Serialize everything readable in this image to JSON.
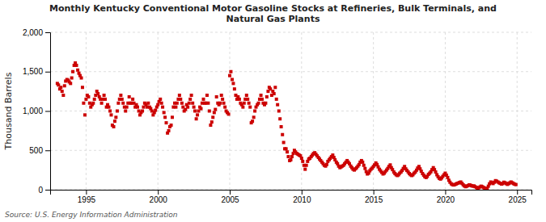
{
  "chart_data": {
    "type": "scatter",
    "title": "Monthly Kentucky Conventional Motor Gasoline Stocks at Refineries, Bulk Terminals, and\nNatural Gas Plants",
    "y_label": "Thousand Barrels",
    "source": "Source: U.S. Energy Information Administration",
    "color": "#cc0000",
    "marker": "square",
    "grid": true,
    "xlim": [
      1992.5,
      2026.0
    ],
    "xticks": [
      1995,
      2000,
      2005,
      2010,
      2015,
      2020,
      2025
    ],
    "ylim": [
      0,
      2000
    ],
    "yticks": [
      0,
      500,
      {
        "value": 1000,
        "label": "1,000"
      },
      {
        "value": 1500,
        "label": "1,500"
      },
      {
        "value": 2000,
        "label": "2,000"
      }
    ],
    "x": [
      1993.0,
      1993.08,
      1993.17,
      1993.25,
      1993.33,
      1993.42,
      1993.5,
      1993.58,
      1993.67,
      1993.75,
      1993.83,
      1993.92,
      1994.0,
      1994.08,
      1994.17,
      1994.25,
      1994.33,
      1994.42,
      1994.5,
      1994.58,
      1994.67,
      1994.75,
      1994.83,
      1994.92,
      1995.0,
      1995.08,
      1995.17,
      1995.25,
      1995.33,
      1995.42,
      1995.5,
      1995.58,
      1995.67,
      1995.75,
      1995.83,
      1995.92,
      1996.0,
      1996.08,
      1996.17,
      1996.25,
      1996.33,
      1996.42,
      1996.5,
      1996.58,
      1996.67,
      1996.75,
      1996.83,
      1996.92,
      1997.0,
      1997.08,
      1997.17,
      1997.25,
      1997.33,
      1997.42,
      1997.5,
      1997.58,
      1997.67,
      1997.75,
      1997.83,
      1997.92,
      1998.0,
      1998.08,
      1998.17,
      1998.25,
      1998.33,
      1998.42,
      1998.5,
      1998.58,
      1998.67,
      1998.75,
      1998.83,
      1998.92,
      1999.0,
      1999.08,
      1999.17,
      1999.25,
      1999.33,
      1999.42,
      1999.5,
      1999.58,
      1999.67,
      1999.75,
      1999.83,
      1999.92,
      2000.0,
      2000.08,
      2000.17,
      2000.25,
      2000.33,
      2000.42,
      2000.5,
      2000.58,
      2000.67,
      2000.75,
      2000.83,
      2000.92,
      2001.0,
      2001.08,
      2001.17,
      2001.25,
      2001.33,
      2001.42,
      2001.5,
      2001.58,
      2001.67,
      2001.75,
      2001.83,
      2001.92,
      2002.0,
      2002.08,
      2002.17,
      2002.25,
      2002.33,
      2002.42,
      2002.5,
      2002.58,
      2002.67,
      2002.75,
      2002.83,
      2002.92,
      2003.0,
      2003.08,
      2003.17,
      2003.25,
      2003.33,
      2003.42,
      2003.5,
      2003.58,
      2003.67,
      2003.75,
      2003.83,
      2003.92,
      2004.0,
      2004.08,
      2004.17,
      2004.25,
      2004.33,
      2004.42,
      2004.5,
      2004.58,
      2004.67,
      2004.75,
      2004.83,
      2004.92,
      2005.0,
      2005.08,
      2005.17,
      2005.25,
      2005.33,
      2005.42,
      2005.5,
      2005.58,
      2005.67,
      2005.75,
      2005.83,
      2005.92,
      2006.0,
      2006.08,
      2006.17,
      2006.25,
      2006.33,
      2006.42,
      2006.5,
      2006.58,
      2006.67,
      2006.75,
      2006.83,
      2006.92,
      2007.0,
      2007.08,
      2007.17,
      2007.25,
      2007.33,
      2007.42,
      2007.5,
      2007.58,
      2007.67,
      2007.75,
      2007.83,
      2007.92,
      2008.0,
      2008.08,
      2008.17,
      2008.25,
      2008.33,
      2008.42,
      2008.5,
      2008.58,
      2008.67,
      2008.75,
      2008.83,
      2008.92,
      2009.0,
      2009.08,
      2009.17,
      2009.25,
      2009.33,
      2009.42,
      2009.5,
      2009.58,
      2009.67,
      2009.75,
      2009.83,
      2009.92,
      2010.0,
      2010.08,
      2010.17,
      2010.25,
      2010.33,
      2010.42,
      2010.5,
      2010.58,
      2010.67,
      2010.75,
      2010.83,
      2010.92,
      2011.0,
      2011.08,
      2011.17,
      2011.25,
      2011.33,
      2011.42,
      2011.5,
      2011.58,
      2011.67,
      2011.75,
      2011.83,
      2011.92,
      2012.0,
      2012.08,
      2012.17,
      2012.25,
      2012.33,
      2012.42,
      2012.5,
      2012.58,
      2012.67,
      2012.75,
      2012.83,
      2012.92,
      2013.0,
      2013.08,
      2013.17,
      2013.25,
      2013.33,
      2013.42,
      2013.5,
      2013.58,
      2013.67,
      2013.75,
      2013.83,
      2013.92,
      2014.0,
      2014.08,
      2014.17,
      2014.25,
      2014.33,
      2014.42,
      2014.5,
      2014.58,
      2014.67,
      2014.75,
      2014.83,
      2014.92,
      2015.0,
      2015.08,
      2015.17,
      2015.25,
      2015.33,
      2015.42,
      2015.5,
      2015.58,
      2015.67,
      2015.75,
      2015.83,
      2015.92,
      2016.0,
      2016.08,
      2016.17,
      2016.25,
      2016.33,
      2016.42,
      2016.5,
      2016.58,
      2016.67,
      2016.75,
      2016.83,
      2016.92,
      2017.0,
      2017.08,
      2017.17,
      2017.25,
      2017.33,
      2017.42,
      2017.5,
      2017.58,
      2017.67,
      2017.75,
      2017.83,
      2017.92,
      2018.0,
      2018.08,
      2018.17,
      2018.25,
      2018.33,
      2018.42,
      2018.5,
      2018.58,
      2018.67,
      2018.75,
      2018.83,
      2018.92,
      2019.0,
      2019.08,
      2019.17,
      2019.25,
      2019.33,
      2019.42,
      2019.5,
      2019.58,
      2019.67,
      2019.75,
      2019.83,
      2019.92,
      2020.0,
      2020.08,
      2020.17,
      2020.25,
      2020.33,
      2020.42,
      2020.5,
      2020.58,
      2020.67,
      2020.75,
      2020.83,
      2020.92,
      2021.0,
      2021.08,
      2021.17,
      2021.25,
      2021.33,
      2021.42,
      2021.5,
      2021.58,
      2021.67,
      2021.75,
      2021.83,
      2021.92,
      2022.0,
      2022.08,
      2022.17,
      2022.25,
      2022.33,
      2022.42,
      2022.5,
      2022.58,
      2022.67,
      2022.75,
      2022.83,
      2022.92,
      2023.0,
      2023.08,
      2023.17,
      2023.25,
      2023.33,
      2023.42,
      2023.5,
      2023.58,
      2023.67,
      2023.75,
      2023.83,
      2023.92,
      2024.0,
      2024.08,
      2024.17,
      2024.25,
      2024.33,
      2024.42,
      2024.5,
      2024.58,
      2024.67,
      2024.75,
      2024.83,
      2024.92
    ],
    "values": [
      1350,
      1330,
      1280,
      1300,
      1250,
      1200,
      1320,
      1380,
      1400,
      1390,
      1370,
      1350,
      1420,
      1500,
      1580,
      1610,
      1580,
      1520,
      1480,
      1450,
      1420,
      1300,
      1100,
      950,
      1150,
      1200,
      1180,
      1100,
      1050,
      1080,
      1100,
      1150,
      1200,
      1250,
      1220,
      1180,
      1150,
      1100,
      1150,
      1200,
      1150,
      1050,
      1080,
      1050,
      1000,
      950,
      820,
      800,
      870,
      920,
      1000,
      1100,
      1150,
      1200,
      1150,
      1100,
      1050,
      1000,
      1050,
      1100,
      1180,
      1100,
      1100,
      1150,
      1100,
      1050,
      1080,
      1050,
      1000,
      950,
      980,
      1000,
      1050,
      1100,
      1080,
      1050,
      1100,
      1050,
      1030,
      1000,
      950,
      980,
      1010,
      1050,
      1080,
      1120,
      1150,
      1100,
      1050,
      980,
      920,
      850,
      720,
      750,
      800,
      820,
      920,
      1050,
      1100,
      1050,
      1100,
      1150,
      1200,
      1150,
      1100,
      1050,
      1000,
      1020,
      1080,
      1050,
      1100,
      1150,
      1200,
      1100,
      1050,
      1000,
      900,
      950,
      1000,
      1050,
      1030,
      1100,
      1150,
      1100,
      1100,
      1200,
      1100,
      1000,
      820,
      860,
      920,
      980,
      1020,
      1180,
      1100,
      1080,
      1100,
      1200,
      1150,
      1100,
      1050,
      1000,
      980,
      960,
      1450,
      1500,
      1400,
      1350,
      1280,
      1200,
      1150,
      1180,
      1150,
      1100,
      1080,
      1050,
      1100,
      1150,
      1200,
      1150,
      1100,
      1050,
      850,
      870,
      920,
      1000,
      1050,
      1080,
      1100,
      1150,
      1200,
      1150,
      1100,
      1080,
      1100,
      1180,
      1250,
      1300,
      1280,
      1200,
      1250,
      1220,
      1300,
      1150,
      1080,
      1000,
      900,
      800,
      700,
      600,
      520,
      520,
      480,
      420,
      370,
      380,
      420,
      460,
      500,
      480,
      460,
      450,
      440,
      430,
      400,
      360,
      310,
      260,
      310,
      360,
      390,
      400,
      420,
      440,
      460,
      470,
      450,
      430,
      410,
      390,
      370,
      350,
      330,
      310,
      300,
      320,
      360,
      380,
      400,
      420,
      440,
      410,
      380,
      350,
      330,
      300,
      280,
      290,
      300,
      310,
      330,
      350,
      370,
      350,
      330,
      300,
      280,
      260,
      250,
      265,
      280,
      300,
      320,
      350,
      370,
      350,
      310,
      270,
      230,
      200,
      210,
      240,
      260,
      275,
      295,
      315,
      340,
      320,
      290,
      260,
      240,
      220,
      200,
      210,
      230,
      250,
      270,
      295,
      315,
      280,
      255,
      225,
      205,
      190,
      180,
      190,
      210,
      225,
      245,
      270,
      295,
      265,
      245,
      225,
      205,
      190,
      180,
      190,
      210,
      225,
      248,
      275,
      295,
      265,
      235,
      205,
      185,
      165,
      155,
      170,
      195,
      210,
      228,
      255,
      280,
      255,
      225,
      190,
      165,
      145,
      135,
      150,
      170,
      190,
      210,
      185,
      155,
      120,
      95,
      75,
      65,
      60,
      65,
      72,
      80,
      85,
      92,
      98,
      80,
      62,
      48,
      38,
      45,
      52,
      62,
      58,
      50,
      45,
      48,
      38,
      28,
      18,
      25,
      35,
      45,
      38,
      28,
      20,
      18,
      15,
      45,
      75,
      98,
      88,
      78,
      95,
      115,
      108,
      98,
      88,
      80,
      72,
      78,
      95,
      88,
      78,
      68,
      78,
      88,
      98,
      88,
      78,
      70,
      65
    ]
  }
}
